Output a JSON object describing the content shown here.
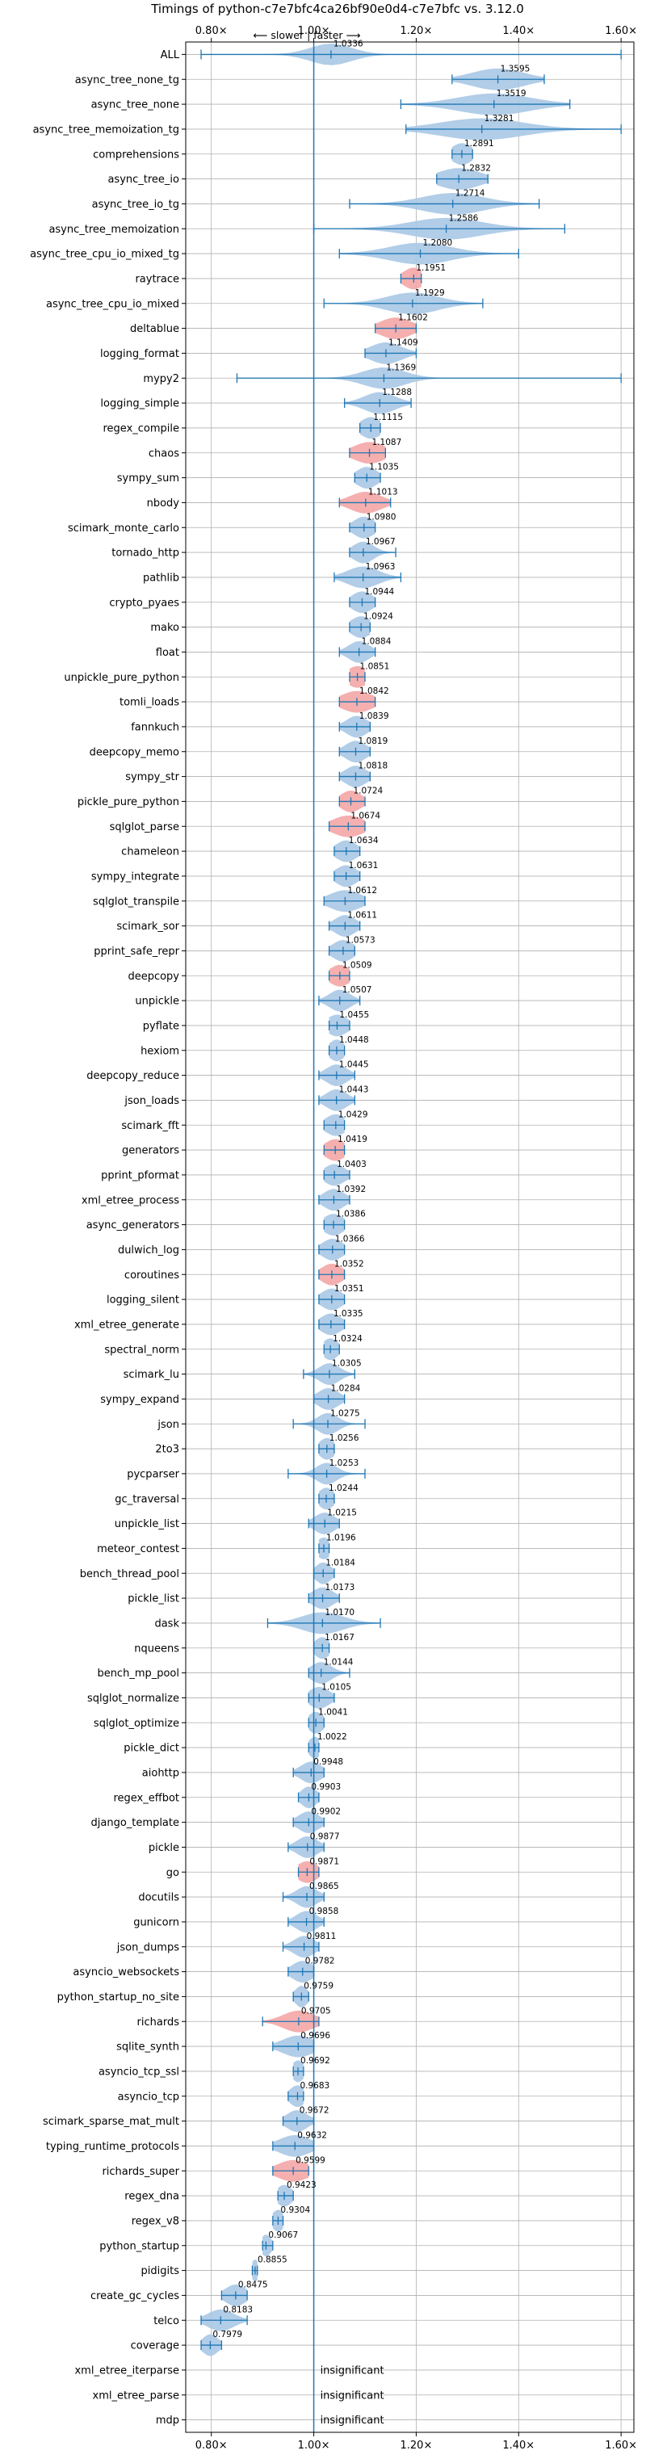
{
  "chart_data": {
    "type": "violin",
    "title": "Timings of python-c7e7bfc4ca26bf90e0d4-c7e7bfc vs. 3.12.0",
    "direction_label": "⟵ slower | faster ⟶",
    "xlim": [
      0.75,
      1.625
    ],
    "xticks": [
      0.8,
      1.0,
      1.2,
      1.4,
      1.6
    ],
    "xtick_labels": [
      "0.80×",
      "1.00×",
      "1.20×",
      "1.40×",
      "1.60×"
    ],
    "reference_line": 1.0,
    "insignificant_label": "insignificant",
    "colors": {
      "violin": "#a8c8e6",
      "highlight": "#f4a6a6",
      "line": "#1f77b4",
      "grid": "#b0b0b0"
    },
    "benchmarks": [
      {
        "name": "ALL",
        "value": 1.0336,
        "min": 0.78,
        "max": 1.6,
        "spread": 0.04,
        "highlight": false
      },
      {
        "name": "async_tree_none_tg",
        "value": 1.3595,
        "min": 1.27,
        "max": 1.45,
        "spread": 0.05,
        "highlight": false
      },
      {
        "name": "async_tree_none",
        "value": 1.3519,
        "min": 1.17,
        "max": 1.5,
        "spread": 0.07,
        "highlight": false
      },
      {
        "name": "async_tree_memoization_tg",
        "value": 1.3281,
        "min": 1.18,
        "max": 1.6,
        "spread": 0.08,
        "highlight": false
      },
      {
        "name": "comprehensions",
        "value": 1.2891,
        "min": 1.27,
        "max": 1.31,
        "spread": 0.02,
        "highlight": false
      },
      {
        "name": "async_tree_io",
        "value": 1.2832,
        "min": 1.24,
        "max": 1.34,
        "spread": 0.04,
        "highlight": false
      },
      {
        "name": "async_tree_io_tg",
        "value": 1.2714,
        "min": 1.07,
        "max": 1.44,
        "spread": 0.06,
        "highlight": false
      },
      {
        "name": "async_tree_memoization",
        "value": 1.2586,
        "min": 1.0,
        "max": 1.49,
        "spread": 0.07,
        "highlight": false
      },
      {
        "name": "async_tree_cpu_io_mixed_tg",
        "value": 1.208,
        "min": 1.05,
        "max": 1.4,
        "spread": 0.06,
        "highlight": false
      },
      {
        "name": "raytrace",
        "value": 1.1951,
        "min": 1.17,
        "max": 1.21,
        "spread": 0.02,
        "highlight": true
      },
      {
        "name": "async_tree_cpu_io_mixed",
        "value": 1.1929,
        "min": 1.02,
        "max": 1.33,
        "spread": 0.05,
        "highlight": false
      },
      {
        "name": "deltablue",
        "value": 1.1602,
        "min": 1.12,
        "max": 1.2,
        "spread": 0.03,
        "highlight": true
      },
      {
        "name": "logging_format",
        "value": 1.1409,
        "min": 1.1,
        "max": 1.2,
        "spread": 0.03,
        "highlight": false
      },
      {
        "name": "mypy2",
        "value": 1.1369,
        "min": 0.85,
        "max": 1.6,
        "spread": 0.04,
        "highlight": false
      },
      {
        "name": "logging_simple",
        "value": 1.1288,
        "min": 1.06,
        "max": 1.19,
        "spread": 0.03,
        "highlight": false
      },
      {
        "name": "regex_compile",
        "value": 1.1115,
        "min": 1.09,
        "max": 1.13,
        "spread": 0.02,
        "highlight": false
      },
      {
        "name": "chaos",
        "value": 1.1087,
        "min": 1.07,
        "max": 1.14,
        "spread": 0.03,
        "highlight": true
      },
      {
        "name": "sympy_sum",
        "value": 1.1035,
        "min": 1.08,
        "max": 1.13,
        "spread": 0.02,
        "highlight": false
      },
      {
        "name": "nbody",
        "value": 1.1013,
        "min": 1.05,
        "max": 1.15,
        "spread": 0.03,
        "highlight": true
      },
      {
        "name": "scimark_monte_carlo",
        "value": 1.098,
        "min": 1.07,
        "max": 1.12,
        "spread": 0.02,
        "highlight": false
      },
      {
        "name": "tornado_http",
        "value": 1.0967,
        "min": 1.07,
        "max": 1.16,
        "spread": 0.02,
        "highlight": false
      },
      {
        "name": "pathlib",
        "value": 1.0963,
        "min": 1.04,
        "max": 1.17,
        "spread": 0.03,
        "highlight": false
      },
      {
        "name": "crypto_pyaes",
        "value": 1.0944,
        "min": 1.07,
        "max": 1.12,
        "spread": 0.02,
        "highlight": false
      },
      {
        "name": "mako",
        "value": 1.0924,
        "min": 1.07,
        "max": 1.11,
        "spread": 0.02,
        "highlight": false
      },
      {
        "name": "float",
        "value": 1.0884,
        "min": 1.05,
        "max": 1.12,
        "spread": 0.02,
        "highlight": false
      },
      {
        "name": "unpickle_pure_python",
        "value": 1.0851,
        "min": 1.07,
        "max": 1.1,
        "spread": 0.02,
        "highlight": true
      },
      {
        "name": "tomli_loads",
        "value": 1.0842,
        "min": 1.05,
        "max": 1.12,
        "spread": 0.03,
        "highlight": true
      },
      {
        "name": "fannkuch",
        "value": 1.0839,
        "min": 1.05,
        "max": 1.11,
        "spread": 0.02,
        "highlight": false
      },
      {
        "name": "deepcopy_memo",
        "value": 1.0819,
        "min": 1.05,
        "max": 1.11,
        "spread": 0.02,
        "highlight": false
      },
      {
        "name": "sympy_str",
        "value": 1.0818,
        "min": 1.05,
        "max": 1.11,
        "spread": 0.02,
        "highlight": false
      },
      {
        "name": "pickle_pure_python",
        "value": 1.0724,
        "min": 1.05,
        "max": 1.1,
        "spread": 0.02,
        "highlight": true
      },
      {
        "name": "sqlglot_parse",
        "value": 1.0674,
        "min": 1.03,
        "max": 1.1,
        "spread": 0.03,
        "highlight": true
      },
      {
        "name": "chameleon",
        "value": 1.0634,
        "min": 1.04,
        "max": 1.09,
        "spread": 0.02,
        "highlight": false
      },
      {
        "name": "sympy_integrate",
        "value": 1.0631,
        "min": 1.04,
        "max": 1.09,
        "spread": 0.02,
        "highlight": false
      },
      {
        "name": "sqlglot_transpile",
        "value": 1.0612,
        "min": 1.02,
        "max": 1.1,
        "spread": 0.03,
        "highlight": false
      },
      {
        "name": "scimark_sor",
        "value": 1.0611,
        "min": 1.03,
        "max": 1.09,
        "spread": 0.02,
        "highlight": false
      },
      {
        "name": "pprint_safe_repr",
        "value": 1.0573,
        "min": 1.03,
        "max": 1.08,
        "spread": 0.02,
        "highlight": false
      },
      {
        "name": "deepcopy",
        "value": 1.0509,
        "min": 1.03,
        "max": 1.07,
        "spread": 0.02,
        "highlight": true
      },
      {
        "name": "unpickle",
        "value": 1.0507,
        "min": 1.01,
        "max": 1.09,
        "spread": 0.02,
        "highlight": false
      },
      {
        "name": "pyflate",
        "value": 1.0455,
        "min": 1.03,
        "max": 1.07,
        "spread": 0.02,
        "highlight": false
      },
      {
        "name": "hexiom",
        "value": 1.0448,
        "min": 1.03,
        "max": 1.06,
        "spread": 0.015,
        "highlight": false
      },
      {
        "name": "deepcopy_reduce",
        "value": 1.0445,
        "min": 1.01,
        "max": 1.08,
        "spread": 0.02,
        "highlight": false
      },
      {
        "name": "json_loads",
        "value": 1.0443,
        "min": 1.01,
        "max": 1.08,
        "spread": 0.02,
        "highlight": false
      },
      {
        "name": "scimark_fft",
        "value": 1.0429,
        "min": 1.02,
        "max": 1.06,
        "spread": 0.02,
        "highlight": false
      },
      {
        "name": "generators",
        "value": 1.0419,
        "min": 1.02,
        "max": 1.06,
        "spread": 0.02,
        "highlight": true
      },
      {
        "name": "pprint_pformat",
        "value": 1.0403,
        "min": 1.02,
        "max": 1.07,
        "spread": 0.02,
        "highlight": false
      },
      {
        "name": "xml_etree_process",
        "value": 1.0392,
        "min": 1.01,
        "max": 1.07,
        "spread": 0.02,
        "highlight": false
      },
      {
        "name": "async_generators",
        "value": 1.0386,
        "min": 1.02,
        "max": 1.06,
        "spread": 0.02,
        "highlight": false
      },
      {
        "name": "dulwich_log",
        "value": 1.0366,
        "min": 1.01,
        "max": 1.06,
        "spread": 0.02,
        "highlight": false
      },
      {
        "name": "coroutines",
        "value": 1.0352,
        "min": 1.01,
        "max": 1.06,
        "spread": 0.02,
        "highlight": true
      },
      {
        "name": "logging_silent",
        "value": 1.0351,
        "min": 1.01,
        "max": 1.06,
        "spread": 0.02,
        "highlight": false
      },
      {
        "name": "xml_etree_generate",
        "value": 1.0335,
        "min": 1.01,
        "max": 1.06,
        "spread": 0.02,
        "highlight": false
      },
      {
        "name": "spectral_norm",
        "value": 1.0324,
        "min": 1.02,
        "max": 1.05,
        "spread": 0.015,
        "highlight": false
      },
      {
        "name": "scimark_lu",
        "value": 1.0305,
        "min": 0.98,
        "max": 1.08,
        "spread": 0.02,
        "highlight": false
      },
      {
        "name": "sympy_expand",
        "value": 1.0284,
        "min": 1.0,
        "max": 1.06,
        "spread": 0.02,
        "highlight": false
      },
      {
        "name": "json",
        "value": 1.0275,
        "min": 0.96,
        "max": 1.1,
        "spread": 0.02,
        "highlight": false
      },
      {
        "name": "2to3",
        "value": 1.0256,
        "min": 1.01,
        "max": 1.04,
        "spread": 0.015,
        "highlight": false
      },
      {
        "name": "pycparser",
        "value": 1.0253,
        "min": 0.95,
        "max": 1.1,
        "spread": 0.02,
        "highlight": false
      },
      {
        "name": "gc_traversal",
        "value": 1.0244,
        "min": 1.01,
        "max": 1.04,
        "spread": 0.015,
        "highlight": false
      },
      {
        "name": "unpickle_list",
        "value": 1.0215,
        "min": 0.99,
        "max": 1.05,
        "spread": 0.02,
        "highlight": false
      },
      {
        "name": "meteor_contest",
        "value": 1.0196,
        "min": 1.01,
        "max": 1.03,
        "spread": 0.015,
        "highlight": false
      },
      {
        "name": "bench_thread_pool",
        "value": 1.0184,
        "min": 1.0,
        "max": 1.04,
        "spread": 0.015,
        "highlight": false
      },
      {
        "name": "pickle_list",
        "value": 1.0173,
        "min": 0.99,
        "max": 1.05,
        "spread": 0.02,
        "highlight": false
      },
      {
        "name": "dask",
        "value": 1.017,
        "min": 0.91,
        "max": 1.13,
        "spread": 0.04,
        "highlight": false
      },
      {
        "name": "nqueens",
        "value": 1.0167,
        "min": 1.0,
        "max": 1.03,
        "spread": 0.015,
        "highlight": false
      },
      {
        "name": "bench_mp_pool",
        "value": 1.0144,
        "min": 0.99,
        "max": 1.07,
        "spread": 0.02,
        "highlight": false
      },
      {
        "name": "sqlglot_normalize",
        "value": 1.0105,
        "min": 0.99,
        "max": 1.04,
        "spread": 0.02,
        "highlight": false
      },
      {
        "name": "sqlglot_optimize",
        "value": 1.0041,
        "min": 0.99,
        "max": 1.02,
        "spread": 0.015,
        "highlight": false
      },
      {
        "name": "pickle_dict",
        "value": 1.0022,
        "min": 0.99,
        "max": 1.01,
        "spread": 0.012,
        "highlight": false
      },
      {
        "name": "aiohttp",
        "value": 0.9948,
        "min": 0.96,
        "max": 1.02,
        "spread": 0.02,
        "highlight": false
      },
      {
        "name": "regex_effbot",
        "value": 0.9903,
        "min": 0.97,
        "max": 1.01,
        "spread": 0.015,
        "highlight": false
      },
      {
        "name": "django_template",
        "value": 0.9902,
        "min": 0.96,
        "max": 1.02,
        "spread": 0.02,
        "highlight": false
      },
      {
        "name": "pickle",
        "value": 0.9877,
        "min": 0.95,
        "max": 1.02,
        "spread": 0.02,
        "highlight": false
      },
      {
        "name": "go",
        "value": 0.9871,
        "min": 0.97,
        "max": 1.01,
        "spread": 0.02,
        "highlight": true
      },
      {
        "name": "docutils",
        "value": 0.9865,
        "min": 0.94,
        "max": 1.02,
        "spread": 0.02,
        "highlight": false
      },
      {
        "name": "gunicorn",
        "value": 0.9858,
        "min": 0.95,
        "max": 1.02,
        "spread": 0.02,
        "highlight": false
      },
      {
        "name": "json_dumps",
        "value": 0.9811,
        "min": 0.94,
        "max": 1.01,
        "spread": 0.02,
        "highlight": false
      },
      {
        "name": "asyncio_websockets",
        "value": 0.9782,
        "min": 0.95,
        "max": 1.0,
        "spread": 0.02,
        "highlight": false
      },
      {
        "name": "python_startup_no_site",
        "value": 0.9759,
        "min": 0.96,
        "max": 0.99,
        "spread": 0.012,
        "highlight": false
      },
      {
        "name": "richards",
        "value": 0.9705,
        "min": 0.9,
        "max": 1.01,
        "spread": 0.03,
        "highlight": true
      },
      {
        "name": "sqlite_synth",
        "value": 0.9696,
        "min": 0.92,
        "max": 1.0,
        "spread": 0.03,
        "highlight": false
      },
      {
        "name": "asyncio_tcp_ssl",
        "value": 0.9692,
        "min": 0.96,
        "max": 0.98,
        "spread": 0.012,
        "highlight": false
      },
      {
        "name": "asyncio_tcp",
        "value": 0.9683,
        "min": 0.95,
        "max": 0.98,
        "spread": 0.015,
        "highlight": false
      },
      {
        "name": "scimark_sparse_mat_mult",
        "value": 0.9672,
        "min": 0.94,
        "max": 1.0,
        "spread": 0.02,
        "highlight": false
      },
      {
        "name": "typing_runtime_protocols",
        "value": 0.9632,
        "min": 0.92,
        "max": 1.0,
        "spread": 0.03,
        "highlight": false
      },
      {
        "name": "richards_super",
        "value": 0.9599,
        "min": 0.92,
        "max": 0.99,
        "spread": 0.03,
        "highlight": true
      },
      {
        "name": "regex_dna",
        "value": 0.9423,
        "min": 0.93,
        "max": 0.96,
        "spread": 0.015,
        "highlight": false
      },
      {
        "name": "regex_v8",
        "value": 0.9304,
        "min": 0.92,
        "max": 0.94,
        "spread": 0.012,
        "highlight": false
      },
      {
        "name": "python_startup",
        "value": 0.9067,
        "min": 0.9,
        "max": 0.92,
        "spread": 0.01,
        "highlight": false
      },
      {
        "name": "pidigits",
        "value": 0.8855,
        "min": 0.88,
        "max": 0.89,
        "spread": 0.008,
        "highlight": false
      },
      {
        "name": "create_gc_cycles",
        "value": 0.8475,
        "min": 0.82,
        "max": 0.87,
        "spread": 0.02,
        "highlight": false
      },
      {
        "name": "telco",
        "value": 0.8183,
        "min": 0.78,
        "max": 0.87,
        "spread": 0.025,
        "highlight": false
      },
      {
        "name": "coverage",
        "value": 0.7979,
        "min": 0.78,
        "max": 0.82,
        "spread": 0.015,
        "highlight": false
      },
      {
        "name": "xml_etree_iterparse",
        "value": null,
        "insignificant": true
      },
      {
        "name": "xml_etree_parse",
        "value": null,
        "insignificant": true
      },
      {
        "name": "mdp",
        "value": null,
        "insignificant": true
      }
    ]
  }
}
